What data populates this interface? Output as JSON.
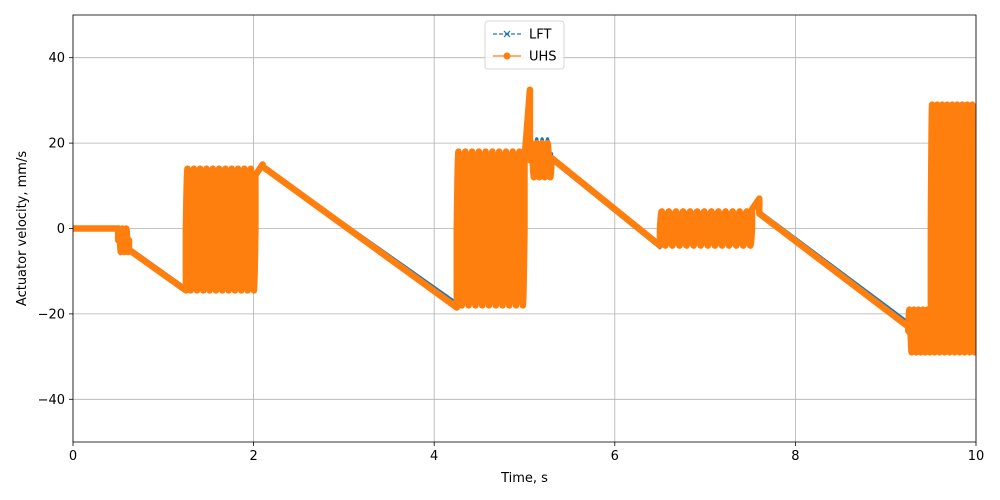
{
  "chart_data": {
    "type": "line",
    "title": "",
    "xlabel": "Time, s",
    "ylabel": "Actuator velocity, mm/s",
    "xlim": [
      0,
      10
    ],
    "ylim": [
      -50,
      50
    ],
    "xticks": [
      0,
      2,
      4,
      6,
      8,
      10
    ],
    "yticks": [
      -40,
      -20,
      0,
      20,
      40
    ],
    "xtick_labels": [
      "0",
      "2",
      "4",
      "6",
      "8",
      "10"
    ],
    "ytick_labels": [
      "−40",
      "−20",
      "0",
      "20",
      "40"
    ],
    "grid": true,
    "legend_position": "top-center",
    "series": [
      {
        "name": "LFT",
        "color": "#1f77b4",
        "line_style": "dashed",
        "marker": "x",
        "segments": [
          {
            "type": "linear",
            "t0": 0.0,
            "t1": 0.5,
            "v0": 0,
            "v1": 0
          },
          {
            "type": "linear",
            "t0": 0.5,
            "t1": 0.62,
            "v0": 0,
            "v1": -4.5
          },
          {
            "type": "linear",
            "t0": 0.62,
            "t1": 1.25,
            "v0": -4.5,
            "v1": -14
          },
          {
            "type": "osc",
            "t0": 1.25,
            "t1": 2.02,
            "hi": 14,
            "lo": -14.5,
            "n": 11
          },
          {
            "type": "linear",
            "t0": 2.02,
            "t1": 2.1,
            "v0": 12,
            "v1": 14.5
          },
          {
            "type": "linear",
            "t0": 2.1,
            "t1": 4.25,
            "v0": 14.5,
            "v1": -17.5
          },
          {
            "type": "osc",
            "t0": 4.25,
            "t1": 5.0,
            "hi": 17,
            "lo": -17.5,
            "n": 10
          },
          {
            "type": "linear",
            "t0": 5.0,
            "t1": 5.06,
            "v0": 15,
            "v1": 28
          },
          {
            "type": "osc",
            "t0": 5.06,
            "t1": 5.3,
            "hi": 21,
            "lo": 14,
            "n": 4
          },
          {
            "type": "linear",
            "t0": 5.3,
            "t1": 6.5,
            "v0": 16,
            "v1": -4.5
          },
          {
            "type": "osc",
            "t0": 6.5,
            "t1": 7.52,
            "hi": 3.5,
            "lo": -4,
            "n": 13
          },
          {
            "type": "linear",
            "t0": 7.52,
            "t1": 7.6,
            "v0": 4.5,
            "v1": 5.5
          },
          {
            "type": "linear",
            "t0": 7.6,
            "t1": 9.25,
            "v0": 4,
            "v1": -22
          },
          {
            "type": "osc",
            "t0": 9.25,
            "t1": 9.5,
            "hi": -21,
            "lo": -28,
            "n": 5
          },
          {
            "type": "osc",
            "t0": 9.5,
            "t1": 10.0,
            "hi": 25,
            "lo": -26,
            "n": 9
          }
        ]
      },
      {
        "name": "UHS",
        "color": "#ff7f0e",
        "line_style": "solid",
        "marker": "o",
        "segments": [
          {
            "type": "linear",
            "t0": 0.0,
            "t1": 0.5,
            "v0": 0,
            "v1": 0
          },
          {
            "type": "osc",
            "t0": 0.5,
            "t1": 0.62,
            "hi": 0,
            "lo": -5.5,
            "n": 3
          },
          {
            "type": "linear",
            "t0": 0.62,
            "t1": 1.25,
            "v0": -5,
            "v1": -14.5
          },
          {
            "type": "osc",
            "t0": 1.25,
            "t1": 2.02,
            "hi": 14,
            "lo": -14.5,
            "n": 11
          },
          {
            "type": "linear",
            "t0": 2.02,
            "t1": 2.1,
            "v0": 12.5,
            "v1": 15
          },
          {
            "type": "linear",
            "t0": 2.1,
            "t1": 4.25,
            "v0": 14.5,
            "v1": -18.5
          },
          {
            "type": "osc",
            "t0": 4.25,
            "t1": 5.0,
            "hi": 18,
            "lo": -18,
            "n": 10
          },
          {
            "type": "linear",
            "t0": 5.0,
            "t1": 5.06,
            "v0": 16,
            "v1": 32.5
          },
          {
            "type": "osc",
            "t0": 5.06,
            "t1": 5.3,
            "hi": 20,
            "lo": 12,
            "n": 4
          },
          {
            "type": "linear",
            "t0": 5.3,
            "t1": 6.5,
            "v0": 16.5,
            "v1": -4
          },
          {
            "type": "osc",
            "t0": 6.5,
            "t1": 7.52,
            "hi": 4,
            "lo": -4,
            "n": 13
          },
          {
            "type": "linear",
            "t0": 7.52,
            "t1": 7.6,
            "v0": 4.5,
            "v1": 7
          },
          {
            "type": "linear",
            "t0": 7.6,
            "t1": 9.25,
            "v0": 3.5,
            "v1": -23
          },
          {
            "type": "osc",
            "t0": 9.25,
            "t1": 9.5,
            "hi": -19,
            "lo": -29,
            "n": 5
          },
          {
            "type": "osc",
            "t0": 9.5,
            "t1": 10.0,
            "hi": 29,
            "lo": -29,
            "n": 9
          }
        ]
      }
    ]
  }
}
